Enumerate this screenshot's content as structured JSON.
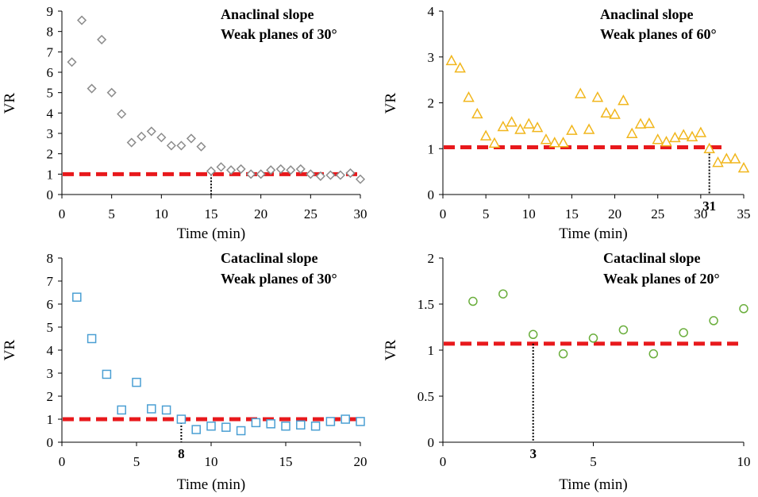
{
  "chart_data": [
    {
      "type": "scatter",
      "title": "Anaclinal slope",
      "subtitle": "Weak planes of 30°",
      "xlabel": "Time (min)",
      "ylabel": "VR",
      "xlim": [
        0,
        30
      ],
      "ylim": [
        0,
        9
      ],
      "xticks": [
        "0",
        "5",
        "10",
        "15",
        "20",
        "25",
        "30"
      ],
      "yticks": [
        "0",
        "1",
        "2",
        "3",
        "4",
        "5",
        "6",
        "7",
        "8",
        "9"
      ],
      "marker": "diamond",
      "color": "#8c8c8c",
      "threshold": 1,
      "threshold_color": "#e8191c",
      "marker_time": 15,
      "marker_label": "",
      "x": [
        1,
        2,
        3,
        4,
        5,
        6,
        7,
        8,
        9,
        10,
        11,
        12,
        13,
        14,
        15,
        16,
        17,
        18,
        19,
        20,
        21,
        22,
        23,
        24,
        25,
        26,
        27,
        28,
        29,
        30
      ],
      "values": [
        6.5,
        8.55,
        5.2,
        7.6,
        5.0,
        3.95,
        2.55,
        2.85,
        3.1,
        2.8,
        2.4,
        2.4,
        2.75,
        2.35,
        1.15,
        1.35,
        1.2,
        1.25,
        1.0,
        1.0,
        1.2,
        1.25,
        1.2,
        1.25,
        1.0,
        0.9,
        0.95,
        0.95,
        1.05,
        0.75
      ]
    },
    {
      "type": "scatter",
      "title": "Anaclinal slope",
      "subtitle": "Weak planes of 60°",
      "xlabel": "Time (min)",
      "ylabel": "VR",
      "xlim": [
        0,
        35
      ],
      "ylim": [
        0,
        4
      ],
      "xticks": [
        "0",
        "5",
        "10",
        "15",
        "20",
        "25",
        "30",
        "35"
      ],
      "yticks": [
        "0",
        "1",
        "2",
        "3",
        "4"
      ],
      "marker": "triangle",
      "color": "#f1b61c",
      "threshold": 1.03,
      "threshold_color": "#e8191c",
      "threshold_xmax": 33,
      "marker_time": 31,
      "marker_label": "31",
      "x": [
        1,
        2,
        3,
        4,
        5,
        6,
        7,
        8,
        9,
        10,
        11,
        12,
        13,
        14,
        15,
        16,
        17,
        18,
        19,
        20,
        21,
        22,
        23,
        24,
        25,
        26,
        27,
        28,
        29,
        30,
        31,
        32,
        33,
        34,
        35
      ],
      "values": [
        2.92,
        2.76,
        2.12,
        1.76,
        1.28,
        1.12,
        1.48,
        1.58,
        1.42,
        1.54,
        1.46,
        1.2,
        1.13,
        1.13,
        1.4,
        2.2,
        1.42,
        2.12,
        1.78,
        1.75,
        2.05,
        1.33,
        1.54,
        1.55,
        1.2,
        1.15,
        1.24,
        1.3,
        1.26,
        1.35,
        1.0,
        0.7,
        0.78,
        0.78,
        0.58
      ]
    },
    {
      "type": "scatter",
      "title": "Cataclinal slope",
      "subtitle": "Weak planes of 30°",
      "xlabel": "Time (min)",
      "ylabel": "VR",
      "xlim": [
        0,
        20
      ],
      "ylim": [
        0,
        8
      ],
      "xticks": [
        "0",
        "5",
        "10",
        "15",
        "20"
      ],
      "yticks": [
        "0",
        "1",
        "2",
        "3",
        "4",
        "5",
        "6",
        "7",
        "8"
      ],
      "marker": "square",
      "color": "#4a9fd3",
      "threshold": 1,
      "threshold_color": "#e8191c",
      "marker_time": 8,
      "marker_label": "8",
      "x": [
        1,
        2,
        3,
        4,
        5,
        6,
        7,
        8,
        9,
        10,
        11,
        12,
        13,
        14,
        15,
        16,
        17,
        18,
        19,
        20
      ],
      "values": [
        6.3,
        4.5,
        2.95,
        1.4,
        2.6,
        1.45,
        1.4,
        1.0,
        0.55,
        0.7,
        0.65,
        0.5,
        0.85,
        0.8,
        0.7,
        0.75,
        0.7,
        0.9,
        1.0,
        0.9
      ]
    },
    {
      "type": "scatter",
      "title": "Cataclinal slope",
      "subtitle": "Weak planes of 20°",
      "xlabel": "Time (min)",
      "ylabel": "VR",
      "xlim": [
        0,
        10
      ],
      "ylim": [
        0,
        2
      ],
      "xticks": [
        "0",
        "5",
        "10"
      ],
      "yticks": [
        "0",
        "0.5",
        "1",
        "1.5",
        "2"
      ],
      "marker": "circle",
      "color": "#6aae3c",
      "threshold": 1.07,
      "threshold_color": "#e8191c",
      "marker_time": 3,
      "marker_label": "3",
      "x": [
        1,
        2,
        3,
        4,
        5,
        6,
        7,
        8,
        9,
        10
      ],
      "values": [
        1.53,
        1.61,
        1.17,
        0.96,
        1.13,
        1.22,
        0.96,
        1.19,
        1.32,
        1.45
      ]
    }
  ]
}
